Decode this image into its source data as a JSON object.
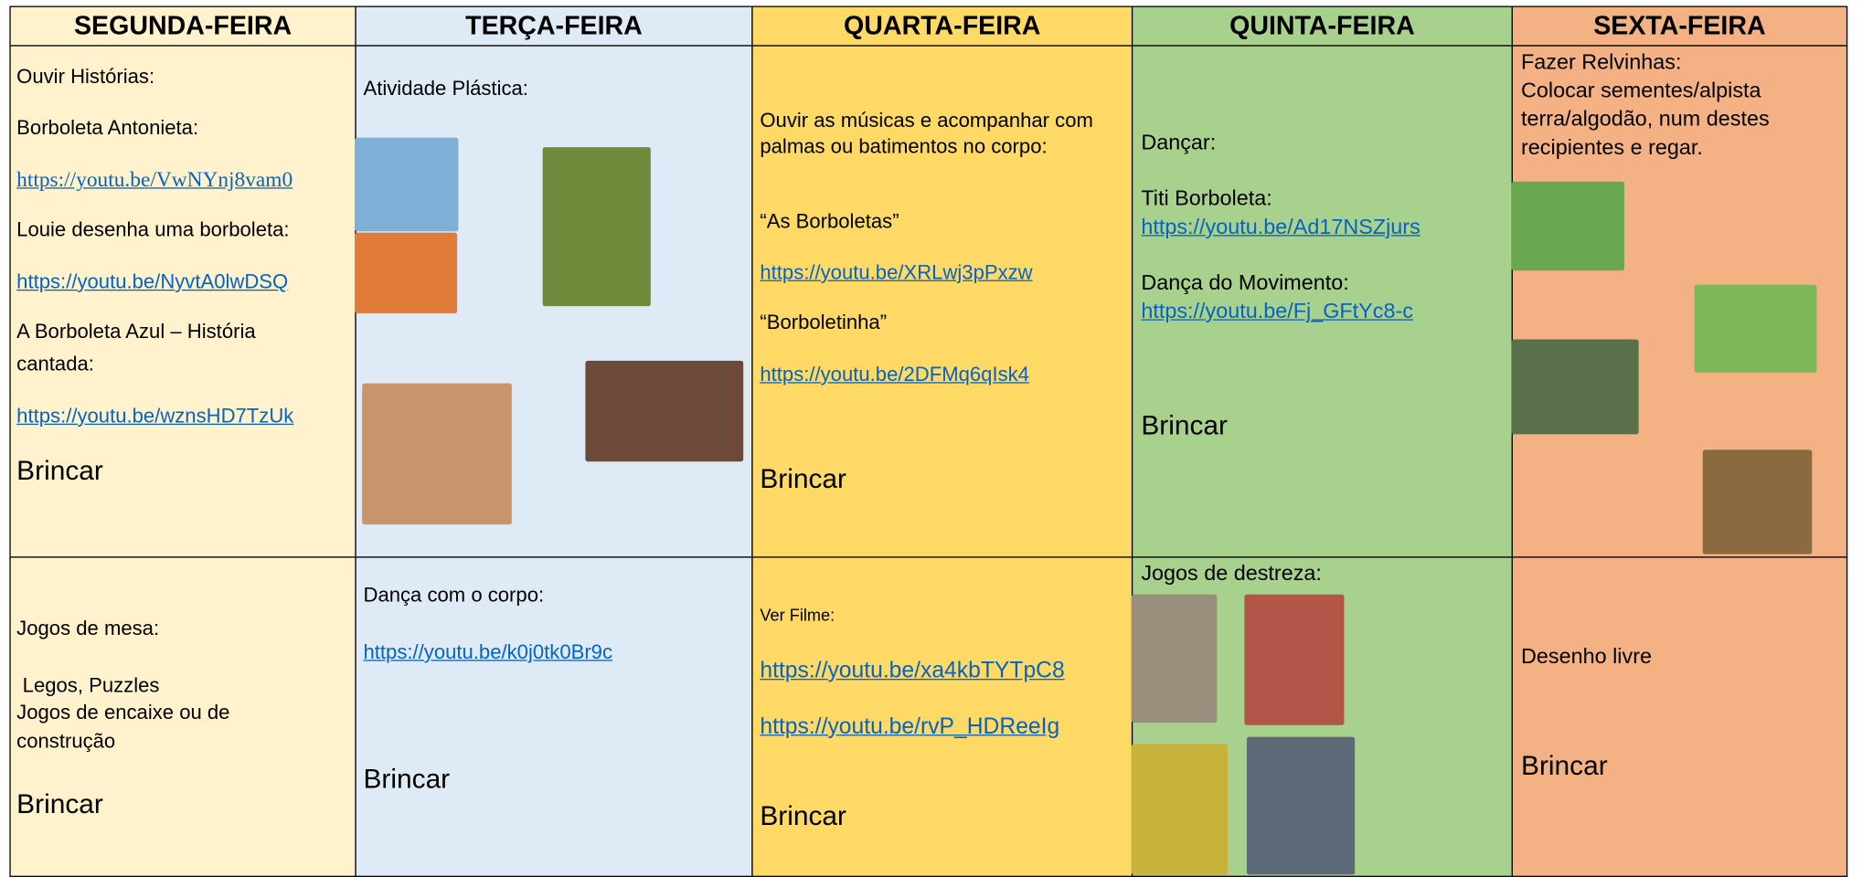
{
  "columns": [
    {
      "title": "SEGUNDA-FEIRA",
      "top": [
        "Ouvir Histórias:",
        "Borboleta Antonieta:",
        "https://youtu.be/VwNYnj8vam0",
        "Louie desenha uma borboleta:",
        "https://youtu.be/NyvtA0lwDSQ",
        "A Borboleta Azul – História",
        "cantada:",
        "https://youtu.be/wznsHD7TzUk",
        "Brincar"
      ],
      "bottom": [
        "Jogos de mesa:",
        "Legos, Puzzles",
        "Jogos de encaixe ou de",
        "construção",
        "Brincar"
      ]
    },
    {
      "title": "TERÇA-FEIRA",
      "top": [
        "Atividade Plástica:"
      ],
      "bottom": [
        "Dança com o corpo:",
        "https://youtu.be/k0j0tk0Br9c",
        "Brincar"
      ]
    },
    {
      "title": "QUARTA-FEIRA",
      "top": [
        "Ouvir as músicas e acompanhar com",
        "palmas ou batimentos no corpo:",
        "“As Borboletas”",
        "https://youtu.be/XRLwj3pPxzw",
        "“Borboletinha”",
        "https://youtu.be/2DFMq6qIsk4",
        "Brincar"
      ],
      "bottom": [
        "Ver Filme:",
        "https://youtu.be/xa4kbTYTpC8",
        "https://youtu.be/rvP_HDReeIg",
        "Brincar"
      ]
    },
    {
      "title": "QUINTA-FEIRA",
      "top": [
        "Dançar:",
        "Titi Borboleta:",
        "https://youtu.be/Ad17NSZjurs",
        "Dança do Movimento:",
        "https://youtu.be/Fj_GFtYc8-c",
        "Brincar"
      ],
      "bottom": [
        "Jogos de destreza:"
      ]
    },
    {
      "title": "SEXTA-FEIRA",
      "top": [
        "Fazer Relvinhas:",
        "Colocar sementes/alpista",
        "terra/algodão, num destes",
        "recipientes e regar."
      ],
      "bottom": [
        "Desenho livre",
        "Brincar"
      ]
    }
  ]
}
